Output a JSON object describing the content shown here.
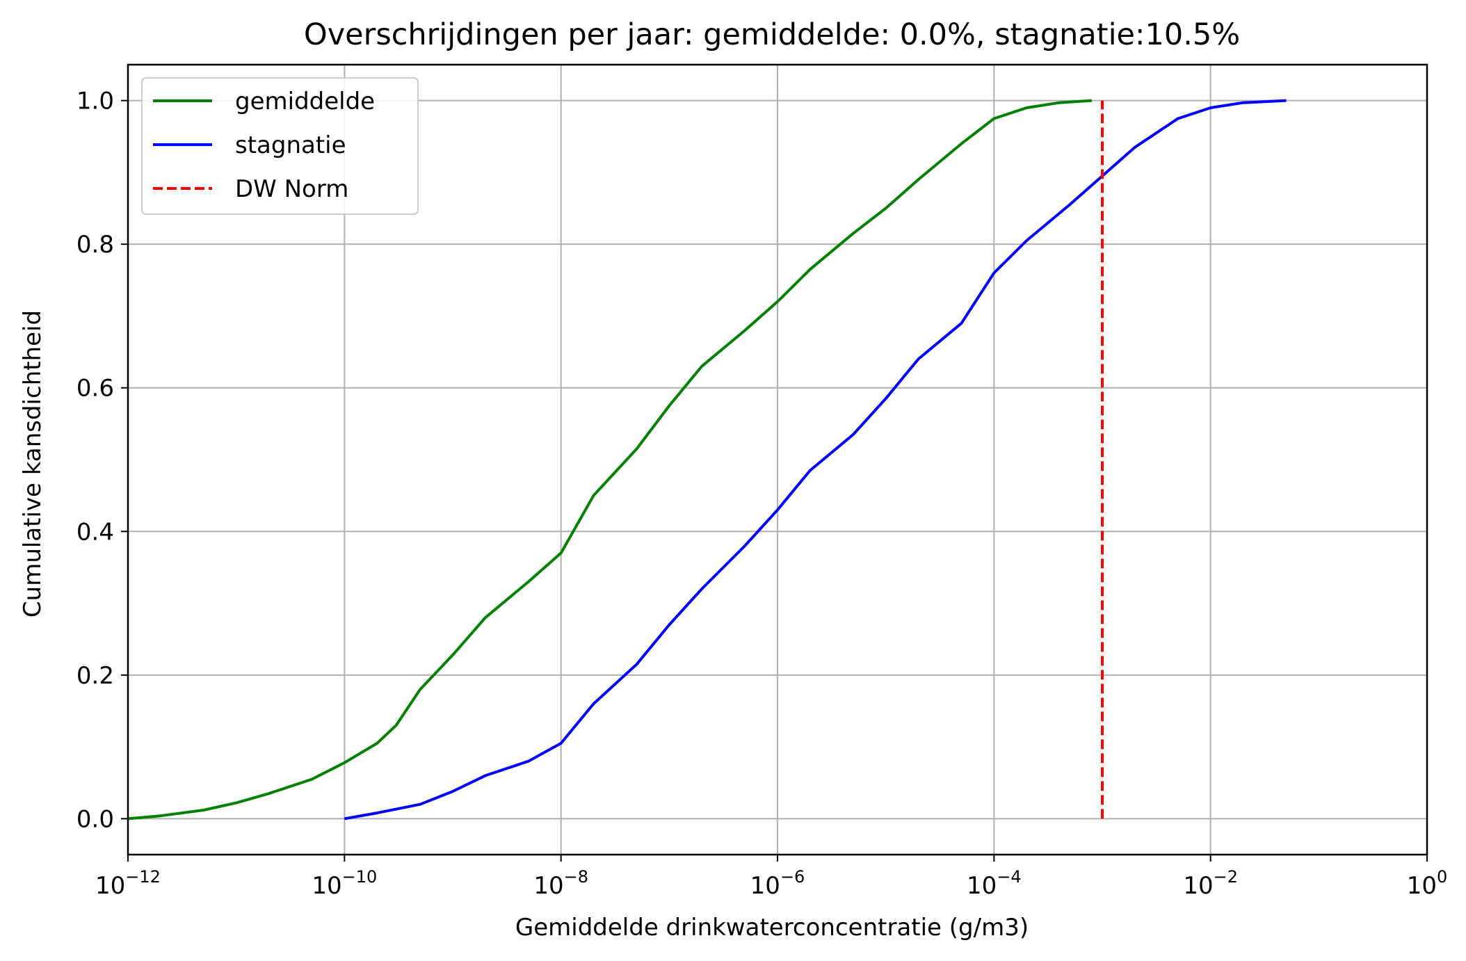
{
  "chart_data": {
    "type": "line",
    "title": "Overschrijdingen per jaar: gemiddelde: 0.0%, stagnatie:10.5%",
    "xlabel": "Gemiddelde drinkwaterconcentratie (g/m3)",
    "ylabel": "Cumulative kansdichtheid",
    "xscale": "log",
    "xlim": [
      1e-12,
      1
    ],
    "ylim": [
      -0.05,
      1.05
    ],
    "grid": true,
    "legend_position": "upper-left",
    "x_ticks": [
      {
        "value": 1e-12,
        "base": "10",
        "exp": "−12"
      },
      {
        "value": 1e-10,
        "base": "10",
        "exp": "−10"
      },
      {
        "value": 1e-08,
        "base": "10",
        "exp": "−8"
      },
      {
        "value": 1e-06,
        "base": "10",
        "exp": "−6"
      },
      {
        "value": 0.0001,
        "base": "10",
        "exp": "−4"
      },
      {
        "value": 0.01,
        "base": "10",
        "exp": "−2"
      },
      {
        "value": 1,
        "base": "10",
        "exp": "0"
      }
    ],
    "y_ticks": [
      {
        "value": 0.0,
        "label": "0.0"
      },
      {
        "value": 0.2,
        "label": "0.2"
      },
      {
        "value": 0.4,
        "label": "0.4"
      },
      {
        "value": 0.6,
        "label": "0.6"
      },
      {
        "value": 0.8,
        "label": "0.8"
      },
      {
        "value": 1.0,
        "label": "1.0"
      }
    ],
    "series": [
      {
        "name": "gemiddelde",
        "color": "#008000",
        "style": "solid",
        "x": [
          1e-12,
          2e-12,
          5e-12,
          1e-11,
          2e-11,
          5e-11,
          1e-10,
          2e-10,
          3e-10,
          5e-10,
          1e-09,
          2e-09,
          5e-09,
          1e-08,
          2e-08,
          5e-08,
          1e-07,
          2e-07,
          5e-07,
          1e-06,
          2e-06,
          5e-06,
          1e-05,
          2e-05,
          5e-05,
          0.0001,
          0.0002,
          0.0004,
          0.0008
        ],
        "y": [
          0.0,
          0.004,
          0.012,
          0.022,
          0.035,
          0.055,
          0.078,
          0.105,
          0.13,
          0.18,
          0.228,
          0.28,
          0.33,
          0.37,
          0.45,
          0.515,
          0.575,
          0.63,
          0.68,
          0.72,
          0.765,
          0.815,
          0.85,
          0.89,
          0.94,
          0.975,
          0.99,
          0.997,
          1.0
        ]
      },
      {
        "name": "stagnatie",
        "color": "#0000ff",
        "style": "solid",
        "x": [
          1e-10,
          2e-10,
          5e-10,
          1e-09,
          2e-09,
          5e-09,
          1e-08,
          2e-08,
          5e-08,
          1e-07,
          2e-07,
          5e-07,
          1e-06,
          2e-06,
          5e-06,
          1e-05,
          2e-05,
          5e-05,
          0.0001,
          0.0002,
          0.0005,
          0.001,
          0.002,
          0.005,
          0.01,
          0.02,
          0.05
        ],
        "y": [
          0.0,
          0.008,
          0.02,
          0.038,
          0.06,
          0.08,
          0.105,
          0.16,
          0.215,
          0.27,
          0.32,
          0.38,
          0.43,
          0.485,
          0.535,
          0.585,
          0.64,
          0.69,
          0.76,
          0.805,
          0.855,
          0.895,
          0.935,
          0.975,
          0.99,
          0.997,
          1.0
        ]
      },
      {
        "name": "DW Norm",
        "color": "#ff0000",
        "style": "dashed",
        "x": [
          0.001,
          0.001
        ],
        "y": [
          0.0,
          1.0
        ]
      }
    ]
  }
}
